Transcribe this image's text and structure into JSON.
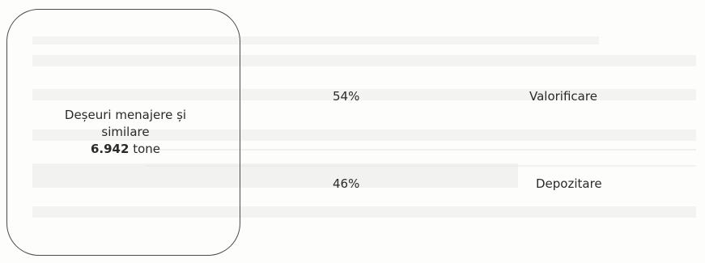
{
  "waste_source": {
    "name_line1": "Deșeuri menajere și",
    "name_line2": "similare",
    "quantity_value": "6.942",
    "quantity_unit": "tone"
  },
  "treatment": [
    {
      "percent": "54%",
      "label": "Valorificare"
    },
    {
      "percent": "46%",
      "label": "Depozitare"
    }
  ],
  "colors": {
    "line": "#4a4a4a",
    "text": "#2a2a2a",
    "ghost": "#c8c8c8"
  }
}
